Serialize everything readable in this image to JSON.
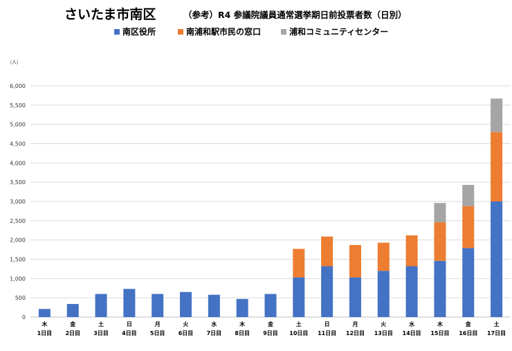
{
  "chart_data": {
    "type": "bar",
    "stacked": true,
    "title": "さいたま市南区",
    "subtitle": "（参考）R4 参議院議員通常選挙期日前投票者数（日別）",
    "ylabel": "（人）",
    "ylim": [
      0,
      6000
    ],
    "yticks": [
      0,
      500,
      1000,
      1500,
      2000,
      2500,
      3000,
      3500,
      4000,
      4500,
      5000,
      5500,
      6000
    ],
    "ytick_labels": [
      "0",
      "500",
      "1,000",
      "1,500",
      "2,000",
      "2,500",
      "3,000",
      "3,500",
      "4,000",
      "4,500",
      "5,000",
      "5,500",
      "6,000"
    ],
    "grid": true,
    "legend_position": "top",
    "categories_weekday": [
      "木",
      "金",
      "土",
      "日",
      "月",
      "火",
      "水",
      "木",
      "金",
      "土",
      "日",
      "月",
      "火",
      "水",
      "木",
      "金",
      "土"
    ],
    "categories_day": [
      "1日目",
      "2日目",
      "3日目",
      "4日目",
      "5日目",
      "6日目",
      "7日目",
      "8日目",
      "9日目",
      "10日目",
      "11日目",
      "12日目",
      "13日目",
      "14日目",
      "15日目",
      "16日目",
      "17日目"
    ],
    "series": [
      {
        "name": "南区役所",
        "color": "#4472c4",
        "values": [
          210,
          340,
          600,
          730,
          600,
          650,
          580,
          470,
          600,
          1030,
          1320,
          1030,
          1200,
          1320,
          1460,
          1790,
          3000
        ]
      },
      {
        "name": "南浦和駅市民の窓口",
        "color": "#ed7d31",
        "values": [
          0,
          0,
          0,
          0,
          0,
          0,
          0,
          0,
          0,
          740,
          770,
          840,
          730,
          800,
          1000,
          1090,
          1800
        ]
      },
      {
        "name": "浦和コミュニティセンター",
        "color": "#a5a5a5",
        "values": [
          0,
          0,
          0,
          0,
          0,
          0,
          0,
          0,
          0,
          0,
          0,
          0,
          0,
          0,
          500,
          550,
          870
        ]
      }
    ]
  }
}
